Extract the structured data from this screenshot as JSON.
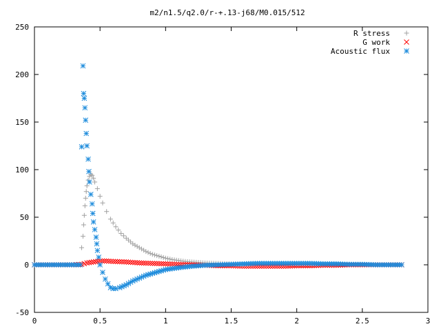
{
  "chart_data": {
    "type": "scatter",
    "title": "m2/n1.5/q2.0/r-+.13-j68/M0.015/512",
    "xlabel": "",
    "ylabel": "",
    "xlim": [
      0,
      3
    ],
    "ylim": [
      -50,
      250
    ],
    "x_ticks": [
      "0",
      "0.5",
      "1",
      "1.5",
      "2",
      "2.5",
      "3"
    ],
    "y_ticks": [
      "-50",
      "0",
      "50",
      "100",
      "150",
      "200",
      "250"
    ],
    "grid": false,
    "legend": "top-right",
    "series": [
      {
        "name": "R stress",
        "marker": "plus",
        "color": "#a0a0a0",
        "points": [
          [
            0.36,
            18
          ],
          [
            0.37,
            30
          ],
          [
            0.375,
            42
          ],
          [
            0.38,
            52
          ],
          [
            0.385,
            62
          ],
          [
            0.39,
            70
          ],
          [
            0.395,
            77
          ],
          [
            0.4,
            83
          ],
          [
            0.41,
            89
          ],
          [
            0.42,
            93
          ],
          [
            0.43,
            95
          ],
          [
            0.44,
            94
          ],
          [
            0.45,
            91
          ],
          [
            0.46,
            87
          ],
          [
            0.48,
            80
          ],
          [
            0.5,
            72
          ],
          [
            0.52,
            65
          ],
          [
            0.55,
            56
          ],
          [
            0.58,
            48
          ],
          [
            0.62,
            40
          ],
          [
            0.66,
            33
          ],
          [
            0.7,
            28
          ],
          [
            0.75,
            22
          ],
          [
            0.8,
            18
          ],
          [
            0.85,
            14
          ],
          [
            0.9,
            11
          ],
          [
            0.95,
            9
          ],
          [
            1.0,
            7
          ],
          [
            1.05,
            5.5
          ],
          [
            1.1,
            4.5
          ],
          [
            1.15,
            3.5
          ],
          [
            1.2,
            3
          ],
          [
            1.25,
            2.5
          ],
          [
            1.3,
            2
          ],
          [
            1.4,
            1.5
          ],
          [
            1.5,
            1
          ],
          [
            1.6,
            0.8
          ],
          [
            1.7,
            0.5
          ],
          [
            1.8,
            0.3
          ],
          [
            1.9,
            0.2
          ],
          [
            2.0,
            0
          ],
          [
            2.2,
            0
          ],
          [
            2.4,
            0
          ],
          [
            2.6,
            0
          ],
          [
            2.8,
            0
          ]
        ]
      },
      {
        "name": "G work",
        "marker": "cross",
        "color": "#ff0000",
        "points": [
          [
            0.0,
            0
          ],
          [
            0.1,
            0
          ],
          [
            0.2,
            0
          ],
          [
            0.3,
            0
          ],
          [
            0.36,
            0.5
          ],
          [
            0.4,
            2
          ],
          [
            0.45,
            3
          ],
          [
            0.5,
            4
          ],
          [
            0.55,
            4
          ],
          [
            0.6,
            3.5
          ],
          [
            0.7,
            3
          ],
          [
            0.8,
            2
          ],
          [
            0.9,
            1.5
          ],
          [
            1.0,
            1
          ],
          [
            1.1,
            0.5
          ],
          [
            1.2,
            0
          ],
          [
            1.3,
            -0.5
          ],
          [
            1.4,
            -1
          ],
          [
            1.5,
            -1
          ],
          [
            1.6,
            -1.5
          ],
          [
            1.7,
            -1.5
          ],
          [
            1.8,
            -1.5
          ],
          [
            1.9,
            -1.5
          ],
          [
            2.0,
            -1
          ],
          [
            2.1,
            -1
          ],
          [
            2.2,
            -0.5
          ],
          [
            2.3,
            -0.5
          ],
          [
            2.4,
            0
          ],
          [
            2.5,
            0
          ],
          [
            2.6,
            0
          ],
          [
            2.7,
            0
          ],
          [
            2.8,
            0
          ]
        ]
      },
      {
        "name": "Acoustic flux",
        "marker": "star",
        "color": "#1e8cdc",
        "points": [
          [
            0.0,
            0
          ],
          [
            0.05,
            0
          ],
          [
            0.1,
            0
          ],
          [
            0.15,
            0
          ],
          [
            0.2,
            0
          ],
          [
            0.25,
            0
          ],
          [
            0.3,
            0
          ],
          [
            0.35,
            0
          ],
          [
            0.36,
            124
          ],
          [
            0.37,
            209
          ],
          [
            0.375,
            180
          ],
          [
            0.38,
            175
          ],
          [
            0.385,
            165
          ],
          [
            0.39,
            152
          ],
          [
            0.395,
            138
          ],
          [
            0.4,
            125
          ],
          [
            0.41,
            111
          ],
          [
            0.415,
            98
          ],
          [
            0.42,
            87
          ],
          [
            0.43,
            74
          ],
          [
            0.44,
            64
          ],
          [
            0.445,
            54
          ],
          [
            0.45,
            45
          ],
          [
            0.46,
            37
          ],
          [
            0.47,
            29
          ],
          [
            0.475,
            22
          ],
          [
            0.48,
            15
          ],
          [
            0.49,
            8
          ],
          [
            0.5,
            0
          ],
          [
            0.52,
            -8
          ],
          [
            0.54,
            -15
          ],
          [
            0.56,
            -20
          ],
          [
            0.58,
            -24
          ],
          [
            0.6,
            -25
          ],
          [
            0.62,
            -25
          ],
          [
            0.65,
            -24
          ],
          [
            0.7,
            -21
          ],
          [
            0.75,
            -17
          ],
          [
            0.8,
            -14
          ],
          [
            0.85,
            -11
          ],
          [
            0.9,
            -9
          ],
          [
            0.95,
            -7
          ],
          [
            1.0,
            -5
          ],
          [
            1.1,
            -3
          ],
          [
            1.2,
            -1.5
          ],
          [
            1.3,
            -0.5
          ],
          [
            1.4,
            0
          ],
          [
            1.5,
            0.5
          ],
          [
            1.6,
            1
          ],
          [
            1.7,
            1.5
          ],
          [
            1.8,
            1.5
          ],
          [
            1.9,
            1.5
          ],
          [
            2.0,
            1.5
          ],
          [
            2.1,
            1.5
          ],
          [
            2.2,
            1
          ],
          [
            2.3,
            1
          ],
          [
            2.4,
            0.5
          ],
          [
            2.5,
            0.5
          ],
          [
            2.6,
            0
          ],
          [
            2.7,
            0
          ],
          [
            2.8,
            0
          ]
        ]
      }
    ]
  }
}
